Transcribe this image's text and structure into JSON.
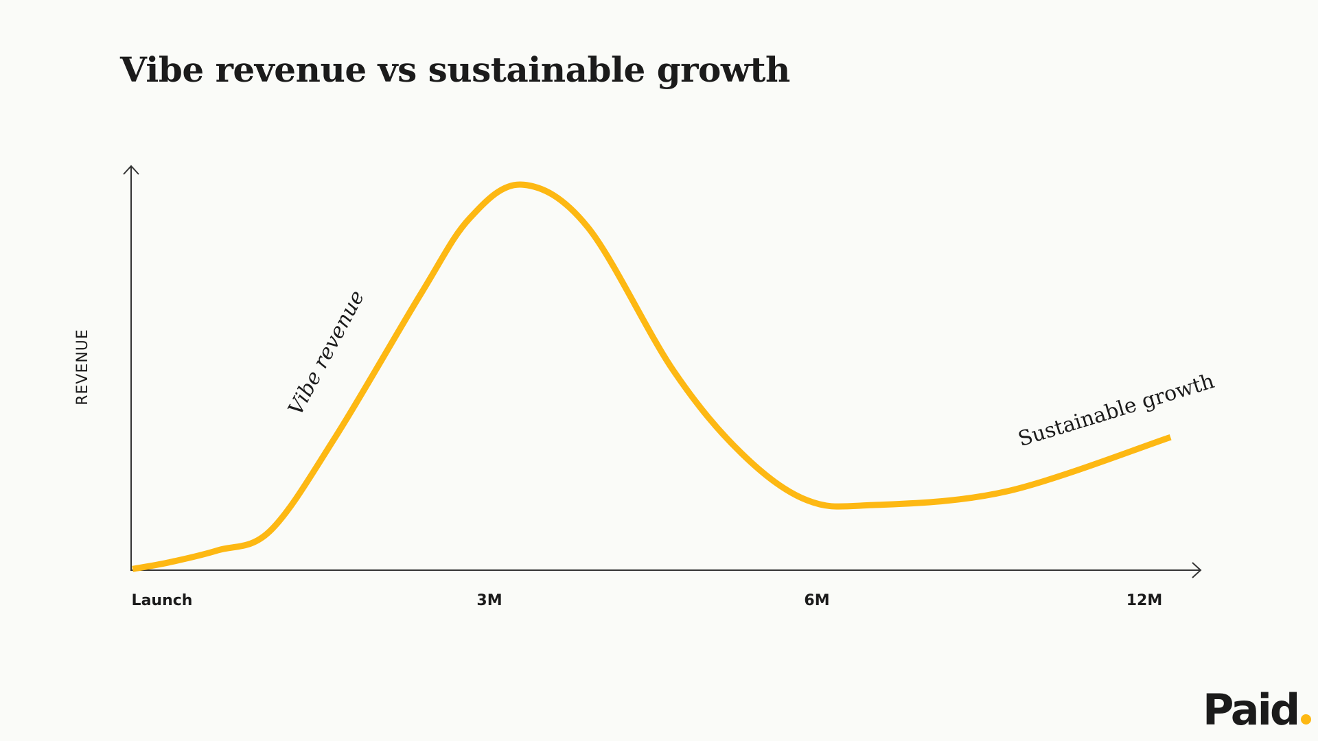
{
  "chart_data": {
    "type": "line",
    "title": "Vibe revenue vs sustainable growth",
    "xlabel": "",
    "ylabel": "REVENUE",
    "x_tick_labels": [
      "Launch",
      "3M",
      "6M",
      "12M"
    ],
    "x_tick_positions": [
      0,
      1,
      2,
      3
    ],
    "ylim": [
      0,
      100
    ],
    "grid": false,
    "legend": "none",
    "series": [
      {
        "color": "#FDB813",
        "points": [
          [
            -0.09,
            0.3
          ],
          [
            0.02,
            1.9
          ],
          [
            0.17,
            4.9
          ],
          [
            0.33,
            9.7
          ],
          [
            0.53,
            33.0
          ],
          [
            0.79,
            68.3
          ],
          [
            0.94,
            87.1
          ],
          [
            1.1,
            95.4
          ],
          [
            1.3,
            84.9
          ],
          [
            1.56,
            49.6
          ],
          [
            1.77,
            28.9
          ],
          [
            1.97,
            17.3
          ],
          [
            2.17,
            16.1
          ],
          [
            2.58,
            19.5
          ],
          [
            3.08,
            32.9
          ]
        ]
      }
    ],
    "annotations": [
      {
        "text": "Vibe revenue",
        "style": "italic",
        "x": 0.52,
        "y": 53
      },
      {
        "text": "Sustainable growth",
        "style": "normal",
        "x": 2.92,
        "y": 38
      }
    ]
  },
  "logo": {
    "text": "Paid",
    "dot_color": "#FDB813"
  },
  "colors": {
    "background": "#fafbf8",
    "axis": "#333333",
    "line": "#FDB813"
  }
}
